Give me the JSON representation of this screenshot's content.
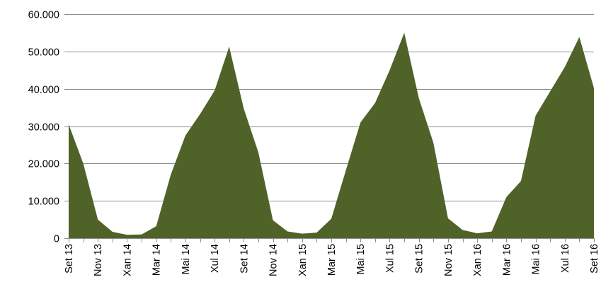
{
  "chart_data": {
    "type": "area",
    "title": "",
    "xlabel": "",
    "ylabel": "",
    "ylim": [
      0,
      60000
    ],
    "yticks": [
      0,
      10000,
      20000,
      30000,
      40000,
      50000,
      60000
    ],
    "ytick_labels": [
      "0",
      "10.000",
      "20.000",
      "30.000",
      "40.000",
      "50.000",
      "60.000"
    ],
    "grid": true,
    "legend": "none",
    "color": "#4f6228",
    "x": [
      "Set 13",
      "Out 13",
      "Nov 13",
      "Dec 13",
      "Xan 14",
      "Feb 14",
      "Mar 14",
      "Abr 14",
      "Mai 14",
      "Xuñ 14",
      "Xul 14",
      "Ago 14",
      "Set 14",
      "Out 14",
      "Nov 14",
      "Dec 14",
      "Xan 15",
      "Feb 15",
      "Mar 15",
      "Abr 15",
      "Mai 15",
      "Xuñ 15",
      "Xul 15",
      "Ago 15",
      "Set 15",
      "Out 15",
      "Nov 15",
      "Dec 15",
      "Xan 16",
      "Feb 16",
      "Mar 16",
      "Abr 16",
      "Mai 16",
      "Xuñ 16",
      "Xul 16",
      "Ago 16",
      "Set 16"
    ],
    "xtick_labels": [
      "Set 13",
      "Nov 13",
      "Xan 14",
      "Mar 14",
      "Mai 14",
      "Xul 14",
      "Set 14",
      "Nov 14",
      "Xan 15",
      "Mar 15",
      "Mai 15",
      "Xul 15",
      "Set 15",
      "Nov 15",
      "Xan 16",
      "Mar 16",
      "Mai 16",
      "Xul 16",
      "Set 16"
    ],
    "values": [
      30500,
      20000,
      5000,
      1700,
      900,
      1000,
      3200,
      17000,
      27500,
      33200,
      39500,
      51300,
      34700,
      23000,
      4800,
      1800,
      1200,
      1500,
      5200,
      18200,
      31000,
      36200,
      45000,
      55000,
      37500,
      25500,
      5300,
      2200,
      1300,
      1800,
      11000,
      15300,
      32800,
      39300,
      45800,
      53900,
      40200
    ]
  }
}
